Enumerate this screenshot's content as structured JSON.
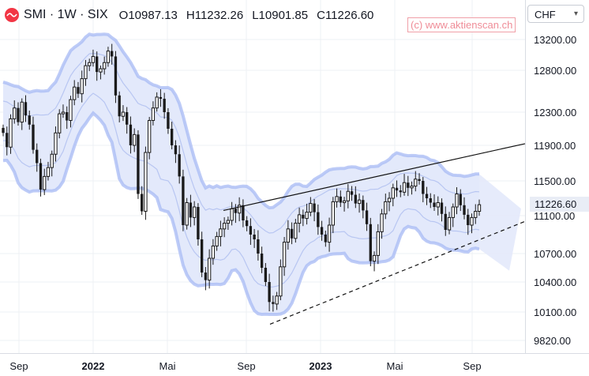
{
  "header": {
    "symbol": "SMI · 1W · SIX",
    "open": "O10987.13",
    "high": "H11232.26",
    "low": "L10901.85",
    "close": "C11226.60"
  },
  "watermark": "(c) www.aktienscan.ch",
  "currency": {
    "selected": "CHF"
  },
  "last_price": "11226.60",
  "colors": {
    "band_fill": "#e3e9fb",
    "band_outer": "#a7b9f4",
    "band_inner": "#b8c6f2",
    "candles": "#1a1a1a",
    "logo": "#f23645"
  },
  "chart_data": {
    "type": "candlestick",
    "title": "SMI · 1W · SIX",
    "y_axis": {
      "position": "right",
      "ticks": [
        13200,
        12800,
        12300,
        11900,
        11500,
        11100,
        10700,
        10400,
        10100,
        9820
      ]
    },
    "x_axis": {
      "ticks": [
        "Sep",
        "2022",
        "Mai",
        "Sep",
        "2023",
        "Mai",
        "Sep"
      ]
    },
    "close_series": [
      12050,
      11880,
      12220,
      12350,
      12180,
      12420,
      12260,
      12150,
      11850,
      11700,
      11400,
      11550,
      11650,
      11800,
      12050,
      12280,
      12300,
      12200,
      12450,
      12600,
      12520,
      12700,
      12860,
      12900,
      12980,
      12780,
      12820,
      12900,
      13050,
      12980,
      12500,
      12250,
      12300,
      12150,
      11900,
      12030,
      11350,
      11150,
      11820,
      12200,
      12350,
      12480,
      12460,
      12300,
      12100,
      11900,
      11800,
      11550,
      11000,
      11250,
      11080,
      11200,
      10850,
      10500,
      10420,
      10650,
      10780,
      10880,
      10960,
      11020,
      11050,
      11180,
      11130,
      11220,
      11050,
      10990,
      10900,
      10850,
      10700,
      10550,
      10400,
      10200,
      10180,
      10260,
      10560,
      10820,
      10960,
      10860,
      11020,
      11110,
      11070,
      11140,
      11240,
      11140,
      10980,
      10900,
      10820,
      11000,
      11260,
      11320,
      11250,
      11270,
      11380,
      11340,
      11240,
      11280,
      11160,
      11010,
      10620,
      10680,
      10930,
      11120,
      11260,
      11300,
      11420,
      11390,
      11370,
      11480,
      11420,
      11440,
      11520,
      11500,
      11350,
      11300,
      11250,
      11200,
      11250,
      11120,
      10950,
      11080,
      11200,
      11350,
      11220,
      11110,
      11000,
      11080,
      11150,
      11226
    ],
    "close_start_week": "2021-09-03",
    "bands": {
      "type": "volatility envelope",
      "outer": true,
      "inner": true
    },
    "trendlines": [
      {
        "style": "solid",
        "from": [
          "2022-10",
          11160
        ],
        "to": [
          "2023-09",
          11920
        ]
      },
      {
        "style": "dashed",
        "from": [
          "2022-10",
          9980
        ],
        "to": [
          "2023-09",
          11040
        ]
      }
    ],
    "last_value": 11226.6,
    "grid": true
  }
}
